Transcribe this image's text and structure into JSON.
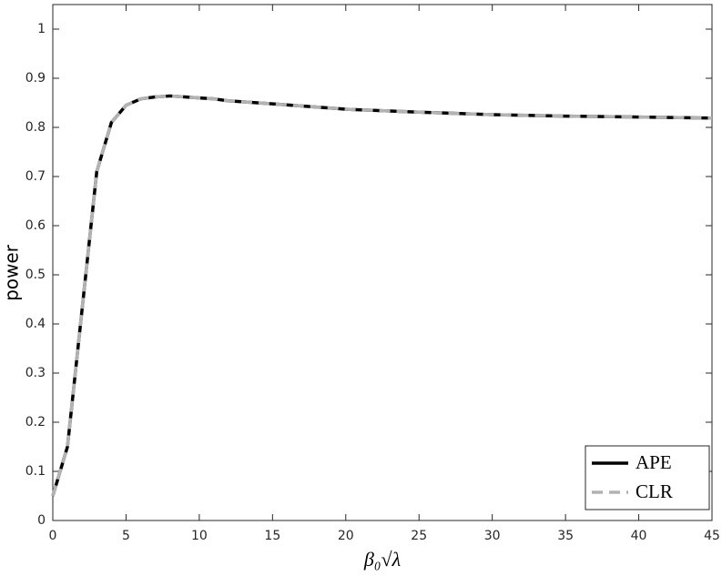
{
  "chart_data": {
    "type": "line",
    "xlabel": "β₀√λ",
    "ylabel": "power",
    "x": [
      0,
      1,
      2,
      3,
      4,
      5,
      6,
      7,
      8,
      9,
      10,
      11,
      12,
      15,
      20,
      25,
      30,
      35,
      40,
      45
    ],
    "series": [
      {
        "name": "APE",
        "color": "#000000",
        "dashed": false,
        "values": [
          0.05,
          0.15,
          0.43,
          0.71,
          0.81,
          0.845,
          0.858,
          0.862,
          0.864,
          0.862,
          0.86,
          0.858,
          0.854,
          0.848,
          0.837,
          0.831,
          0.826,
          0.823,
          0.821,
          0.819
        ]
      },
      {
        "name": "CLR",
        "color": "#b3b3b3",
        "dashed": true,
        "values": [
          0.05,
          0.15,
          0.43,
          0.71,
          0.81,
          0.845,
          0.858,
          0.862,
          0.864,
          0.862,
          0.86,
          0.858,
          0.854,
          0.848,
          0.837,
          0.831,
          0.826,
          0.823,
          0.821,
          0.819
        ]
      }
    ],
    "xlim": [
      0,
      45
    ],
    "xticks": [
      0,
      5,
      10,
      15,
      20,
      25,
      30,
      35,
      40,
      45
    ],
    "ylim": [
      0,
      1.05
    ],
    "yticks": [
      0,
      0.1,
      0.2,
      0.3,
      0.4,
      0.5,
      0.6,
      0.7,
      0.8,
      0.9,
      1
    ],
    "legend": "lower right",
    "grid": false
  }
}
